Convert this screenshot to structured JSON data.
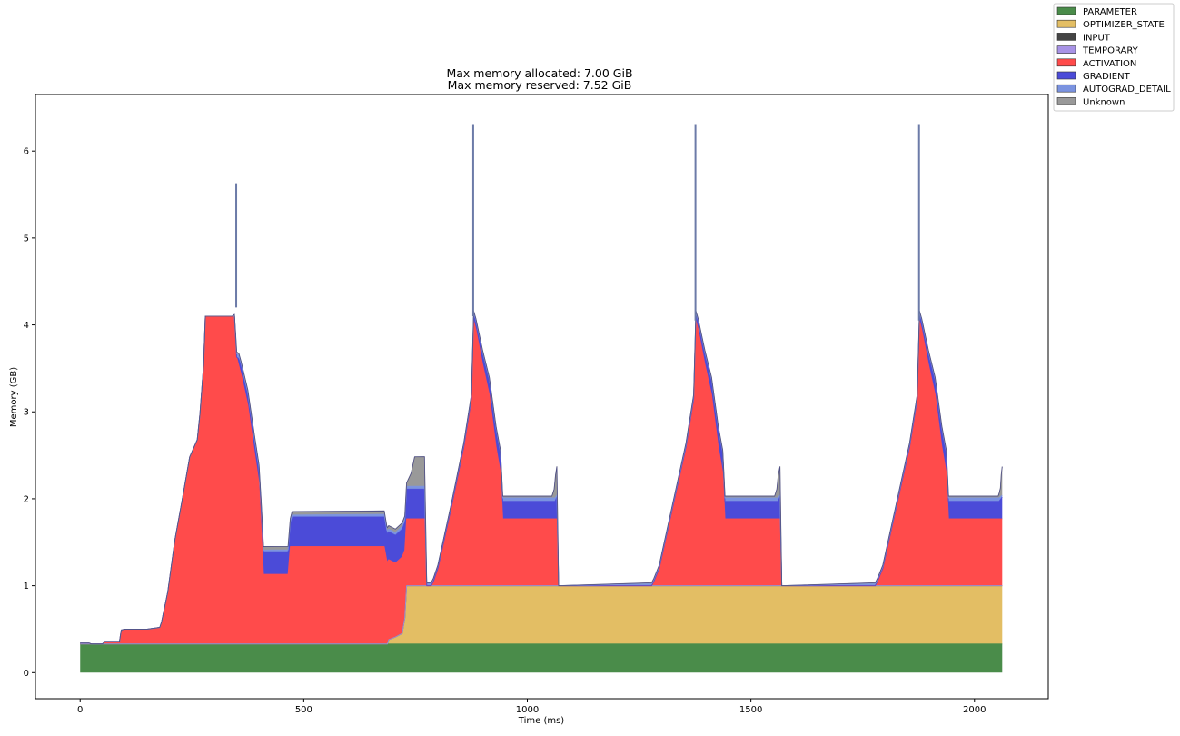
{
  "chart_data": {
    "type": "area",
    "title_lines": [
      "Max memory allocated: 7.00 GiB",
      "Max memory reserved: 7.52 GiB"
    ],
    "xlabel": "Time (ms)",
    "ylabel": "Memory (GB)",
    "xlim": [
      -100,
      2165
    ],
    "ylim": [
      -0.3,
      6.65
    ],
    "xticks": [
      0,
      500,
      1000,
      1500,
      2000
    ],
    "yticks": [
      0,
      1,
      2,
      3,
      4,
      5,
      6
    ],
    "xtick_labels": [
      "0",
      "500",
      "1000",
      "1500",
      "2000"
    ],
    "ytick_labels": [
      "0",
      "1",
      "2",
      "3",
      "4",
      "5",
      "6"
    ],
    "legend_position": "outside-top-right",
    "series": [
      {
        "name": "PARAMETER",
        "color": "#4a8c4a",
        "points": [
          [
            0,
            0.33
          ],
          [
            2062,
            0.33
          ]
        ]
      },
      {
        "name": "OPTIMIZER_STATE",
        "color": "#e3be64",
        "points": [
          [
            0,
            0
          ],
          [
            687,
            0
          ],
          [
            690,
            0.05
          ],
          [
            705,
            0.08
          ],
          [
            720,
            0.12
          ],
          [
            726,
            0.3
          ],
          [
            730,
            0.67
          ],
          [
            2062,
            0.67
          ]
        ]
      },
      {
        "name": "INPUT",
        "color": "#444444",
        "points": [
          [
            0,
            0
          ],
          [
            2062,
            0
          ]
        ]
      },
      {
        "name": "TEMPORARY",
        "color": "#a893e6",
        "points": [
          [
            0,
            0
          ],
          [
            2062,
            0
          ]
        ]
      },
      {
        "name": "ACTIVATION",
        "color": "#ff4b4b",
        "points": [
          [
            0,
            0.01
          ],
          [
            20,
            0.01
          ],
          [
            25,
            0
          ],
          [
            50,
            0
          ],
          [
            55,
            0.03
          ],
          [
            88,
            0.03
          ],
          [
            92,
            0.16
          ],
          [
            100,
            0.17
          ],
          [
            150,
            0.17
          ],
          [
            178,
            0.19
          ],
          [
            182,
            0.25
          ],
          [
            196,
            0.6
          ],
          [
            212,
            1.2
          ],
          [
            228,
            1.65
          ],
          [
            245,
            2.15
          ],
          [
            262,
            2.35
          ],
          [
            268,
            2.65
          ],
          [
            276,
            3.2
          ],
          [
            280,
            3.77
          ],
          [
            345,
            3.77
          ],
          [
            350,
            3.3
          ],
          [
            360,
            3.1
          ],
          [
            375,
            2.75
          ],
          [
            390,
            2.2
          ],
          [
            400,
            1.85
          ],
          [
            405,
            1.3
          ],
          [
            410,
            0.8
          ],
          [
            465,
            0.8
          ],
          [
            470,
            1.12
          ],
          [
            600,
            1.12
          ],
          [
            680,
            1.12
          ],
          [
            686,
            0.95
          ],
          [
            690,
            0.92
          ],
          [
            705,
            0.85
          ],
          [
            720,
            0.88
          ],
          [
            726,
            0.78
          ],
          [
            730,
            0.77
          ],
          [
            770,
            0.77
          ],
          [
            775,
            0
          ],
          [
            785,
            0
          ],
          [
            790,
            0.05
          ],
          [
            800,
            0.2
          ],
          [
            830,
            0.9
          ],
          [
            858,
            1.6
          ],
          [
            875,
            2.15
          ],
          [
            880,
            3.05
          ],
          [
            885,
            2.95
          ],
          [
            900,
            2.55
          ],
          [
            915,
            2.2
          ],
          [
            930,
            1.6
          ],
          [
            940,
            1.3
          ],
          [
            945,
            0.77
          ],
          [
            1066,
            0.77
          ],
          [
            1070,
            0
          ],
          [
            1278,
            0
          ],
          [
            1283,
            0.05
          ],
          [
            1295,
            0.2
          ],
          [
            1325,
            0.9
          ],
          [
            1355,
            1.6
          ],
          [
            1372,
            2.15
          ],
          [
            1377,
            3.05
          ],
          [
            1382,
            2.95
          ],
          [
            1397,
            2.55
          ],
          [
            1412,
            2.2
          ],
          [
            1427,
            1.6
          ],
          [
            1437,
            1.3
          ],
          [
            1442,
            0.77
          ],
          [
            1565,
            0.77
          ],
          [
            1569,
            0
          ],
          [
            1778,
            0
          ],
          [
            1783,
            0.05
          ],
          [
            1795,
            0.2
          ],
          [
            1825,
            0.9
          ],
          [
            1855,
            1.6
          ],
          [
            1872,
            2.15
          ],
          [
            1877,
            3.05
          ],
          [
            1882,
            2.95
          ],
          [
            1897,
            2.55
          ],
          [
            1912,
            2.2
          ],
          [
            1927,
            1.6
          ],
          [
            1937,
            1.3
          ],
          [
            1942,
            0.77
          ],
          [
            2062,
            0.77
          ]
        ]
      },
      {
        "name": "GRADIENT",
        "color": "#4b4bd8",
        "points": [
          [
            0,
            0
          ],
          [
            350,
            0
          ],
          [
            355,
            0.08
          ],
          [
            400,
            0.15
          ],
          [
            405,
            0.26
          ],
          [
            470,
            0.26
          ],
          [
            474,
            0.34
          ],
          [
            680,
            0.34
          ],
          [
            690,
            0.32
          ],
          [
            726,
            0.32
          ],
          [
            730,
            0.34
          ],
          [
            770,
            0.34
          ],
          [
            775,
            0
          ],
          [
            875,
            0
          ],
          [
            880,
            0.06
          ],
          [
            940,
            0.2
          ],
          [
            945,
            0.2
          ],
          [
            1062,
            0.2
          ],
          [
            1066,
            0.25
          ],
          [
            1070,
            0
          ],
          [
            1372,
            0
          ],
          [
            1377,
            0.06
          ],
          [
            1437,
            0.2
          ],
          [
            1442,
            0.2
          ],
          [
            1560,
            0.2
          ],
          [
            1565,
            0.25
          ],
          [
            1569,
            0
          ],
          [
            1872,
            0
          ],
          [
            1877,
            0.06
          ],
          [
            1937,
            0.2
          ],
          [
            1942,
            0.2
          ],
          [
            2055,
            0.2
          ],
          [
            2062,
            0.25
          ]
        ]
      },
      {
        "name": "AUTOGRAD_DETAIL",
        "color": "#7b93e0",
        "points": [
          [
            0,
            0
          ],
          [
            345,
            0
          ],
          [
            350,
            0.04
          ],
          [
            405,
            0.02
          ],
          [
            945,
            0.04
          ],
          [
            1062,
            0.04
          ],
          [
            1066,
            0.02
          ],
          [
            1070,
            0
          ],
          [
            1442,
            0.04
          ],
          [
            1560,
            0.04
          ],
          [
            1565,
            0.02
          ],
          [
            1569,
            0
          ],
          [
            1942,
            0.04
          ],
          [
            2055,
            0.04
          ],
          [
            2062,
            0.02
          ]
        ]
      },
      {
        "name": "Unknown",
        "color": "#999999",
        "points": [
          [
            0,
            0
          ],
          [
            340,
            0
          ],
          [
            345,
            0.02
          ],
          [
            348,
            0.03
          ],
          [
            350,
            0.02
          ],
          [
            405,
            0.04
          ],
          [
            470,
            0.04
          ],
          [
            474,
            0.04
          ],
          [
            680,
            0.04
          ],
          [
            730,
            0.04
          ],
          [
            740,
            0.15
          ],
          [
            748,
            0.34
          ],
          [
            770,
            0.34
          ],
          [
            775,
            0
          ],
          [
            945,
            0.02
          ],
          [
            1055,
            0.02
          ],
          [
            1060,
            0.1
          ],
          [
            1063,
            0.25
          ],
          [
            1066,
            0.33
          ],
          [
            1070,
            0
          ],
          [
            1442,
            0.02
          ],
          [
            1553,
            0.02
          ],
          [
            1558,
            0.1
          ],
          [
            1561,
            0.25
          ],
          [
            1565,
            0.33
          ],
          [
            1569,
            0
          ],
          [
            1942,
            0.02
          ],
          [
            2053,
            0.02
          ],
          [
            2058,
            0.1
          ],
          [
            2060,
            0.25
          ],
          [
            2062,
            0.33
          ]
        ]
      }
    ],
    "spikes": [
      {
        "x": 349,
        "low": 4.2,
        "high": 5.63
      },
      {
        "x": 879,
        "low": 4.1,
        "high": 6.3
      },
      {
        "x": 1376,
        "low": 4.05,
        "high": 6.3
      },
      {
        "x": 1876,
        "low": 4.05,
        "high": 6.3
      }
    ]
  }
}
